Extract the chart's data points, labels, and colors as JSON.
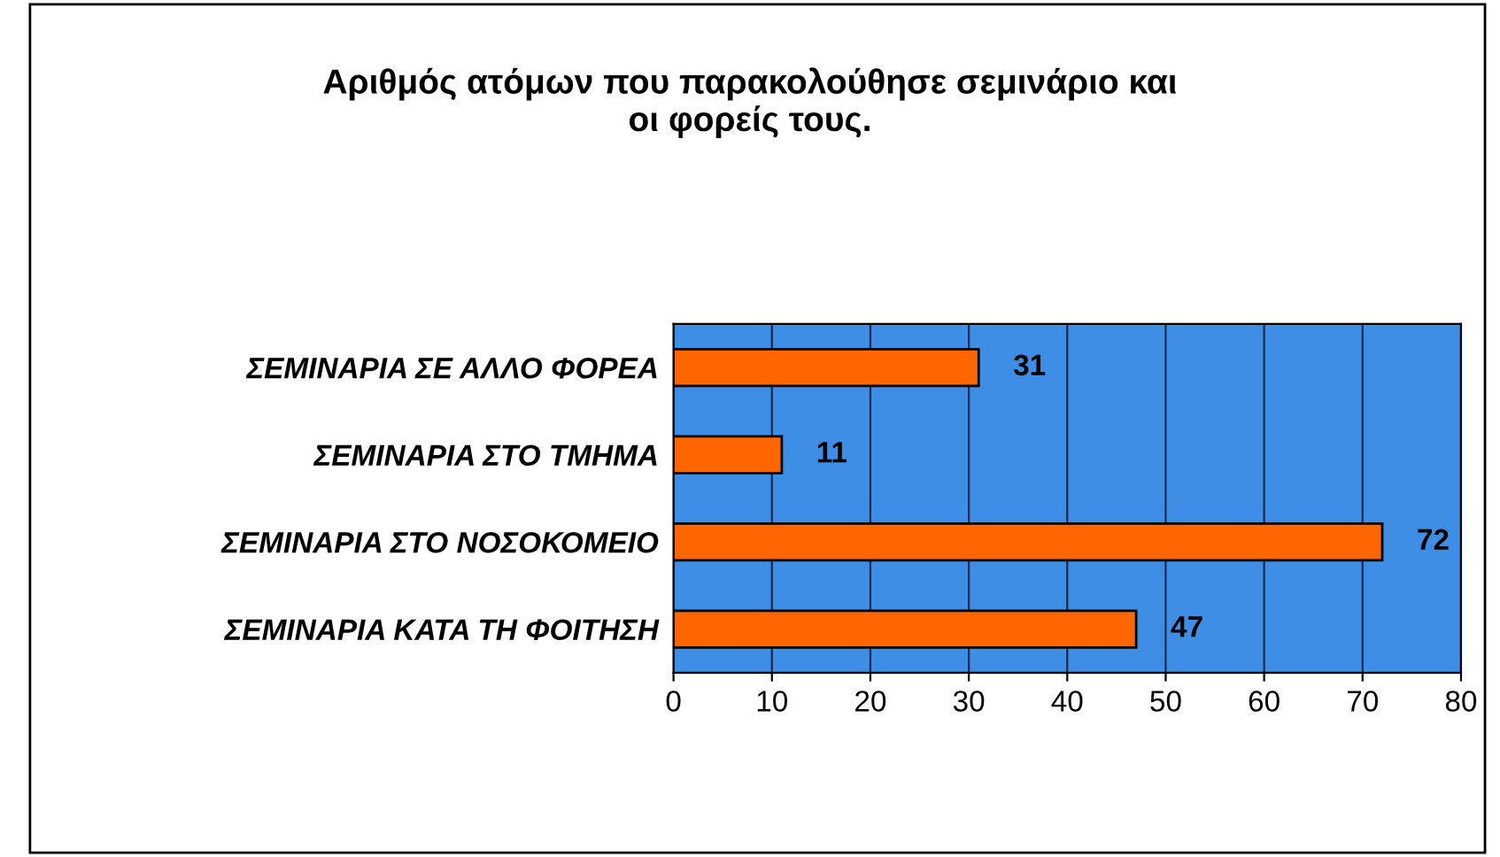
{
  "chart_data": {
    "type": "bar",
    "orientation": "horizontal",
    "title": "Αριθμός ατόμων που παρακολούθησε σεμινάριο και\nοι φορείς τους.",
    "categories": [
      "ΣΕΜΙΝΑΡΙΑ ΣΕ ΑΛΛΟ ΦΟΡΕΑ",
      "ΣΕΜΙΝΑΡΙΑ ΣΤΟ ΤΜΗΜΑ",
      "ΣΕΜΙΝΑΡΙΑ ΣΤΟ ΝΟΣΟΚΟΜΕΙΟ",
      "ΣΕΜΙΝΑΡΙΑ ΚΑΤΑ ΤΗ ΦΟΙΤΗΣΗ"
    ],
    "values": [
      31,
      11,
      72,
      47
    ],
    "color": "#ff6600",
    "xlim": [
      0,
      80
    ],
    "xticks": [
      0,
      10,
      20,
      30,
      40,
      50,
      60,
      70,
      80
    ],
    "grid": "x",
    "data_labels": true
  }
}
